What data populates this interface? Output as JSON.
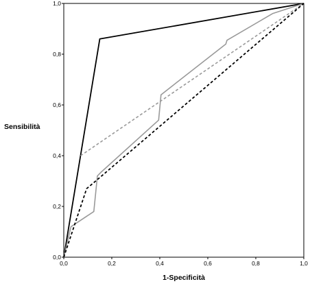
{
  "chart_data": {
    "type": "line",
    "title": "",
    "xlabel": "1-Specificità",
    "ylabel": "Sensibilità",
    "xlim": [
      0,
      1
    ],
    "ylim": [
      0,
      1
    ],
    "grid": false,
    "x_ticks": [
      "0,0",
      "0,2",
      "0,4",
      "0,6",
      "0,8",
      "1,0"
    ],
    "y_ticks": [
      "0,0",
      "0,2",
      "0,4",
      "0,6",
      "0,8",
      "1,0"
    ],
    "series": [
      {
        "color": "#000000",
        "style": "solid",
        "points": [
          [
            0,
            0
          ],
          [
            0.15,
            0.86
          ],
          [
            1.0,
            1.0
          ]
        ]
      },
      {
        "color": "#999999",
        "style": "solid",
        "points": [
          [
            0,
            0
          ],
          [
            0.03,
            0.12
          ],
          [
            0.125,
            0.18
          ],
          [
            0.14,
            0.32
          ],
          [
            0.155,
            0.335
          ],
          [
            0.395,
            0.54
          ],
          [
            0.405,
            0.64
          ],
          [
            0.675,
            0.84
          ],
          [
            0.68,
            0.855
          ],
          [
            0.87,
            0.96
          ],
          [
            1.0,
            1.0
          ]
        ]
      },
      {
        "color": "#999999",
        "style": "dashed",
        "points": [
          [
            0.07,
            0.4
          ],
          [
            1.0,
            1.0
          ]
        ]
      },
      {
        "color": "#000000",
        "style": "dashed",
        "points": [
          [
            0,
            0
          ],
          [
            0.095,
            0.27
          ],
          [
            0.145,
            0.31
          ],
          [
            1.0,
            1.0
          ]
        ]
      }
    ]
  }
}
